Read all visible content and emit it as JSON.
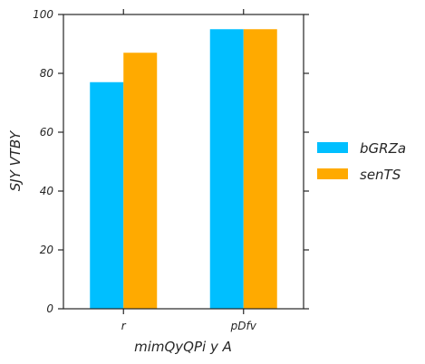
{
  "chart_data": {
    "type": "bar",
    "categories": [
      "r",
      "pDfv"
    ],
    "series": [
      {
        "name": "bGRZa",
        "color": "#00bfff",
        "values": [
          77,
          95
        ]
      },
      {
        "name": "senTS",
        "color": "#ffaa00",
        "values": [
          87,
          95
        ]
      }
    ],
    "xlabel": "mimQyQPi y A",
    "ylabel": "SJY  VTBY",
    "ylim": [
      0,
      100
    ],
    "yticks": [
      0,
      20,
      40,
      60,
      80,
      100
    ],
    "grid": false,
    "legend": "right"
  }
}
